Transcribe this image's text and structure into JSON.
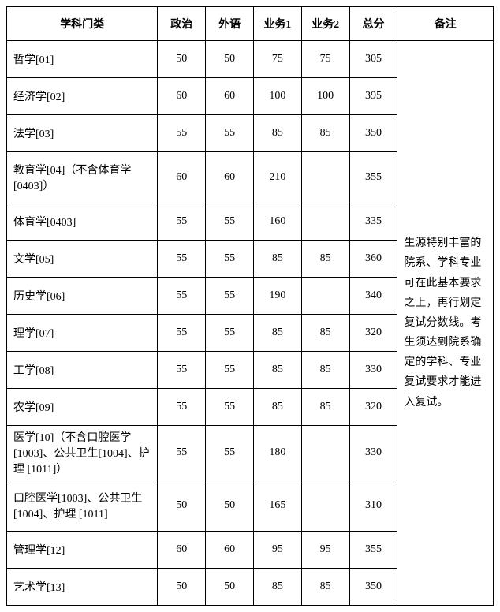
{
  "headers": {
    "subject": "学科门类",
    "politics": "政治",
    "foreign": "外语",
    "course1": "业务1",
    "course2": "业务2",
    "total": "总分",
    "note": "备注"
  },
  "rows": [
    {
      "subject": "哲学[01]",
      "politics": "50",
      "foreign": "50",
      "c1": "75",
      "c2": "75",
      "total": "305",
      "h": "tall1"
    },
    {
      "subject": "经济学[02]",
      "politics": "60",
      "foreign": "60",
      "c1": "100",
      "c2": "100",
      "total": "395",
      "h": "tall1"
    },
    {
      "subject": "法学[03]",
      "politics": "55",
      "foreign": "55",
      "c1": "85",
      "c2": "85",
      "total": "350",
      "h": "tall1"
    },
    {
      "subject": "教育学[04]（不含体育学[0403]）",
      "politics": "60",
      "foreign": "60",
      "c1": "210",
      "c2": "",
      "total": "355",
      "h": "tall2"
    },
    {
      "subject": "体育学[0403]",
      "politics": "55",
      "foreign": "55",
      "c1": "160",
      "c2": "",
      "total": "335",
      "h": "tall1"
    },
    {
      "subject": "文学[05]",
      "politics": "55",
      "foreign": "55",
      "c1": "85",
      "c2": "85",
      "total": "360",
      "h": "tall1"
    },
    {
      "subject": "历史学[06]",
      "politics": "55",
      "foreign": "55",
      "c1": "190",
      "c2": "",
      "total": "340",
      "h": "tall1"
    },
    {
      "subject": "理学[07]",
      "politics": "55",
      "foreign": "55",
      "c1": "85",
      "c2": "85",
      "total": "320",
      "h": "tall1"
    },
    {
      "subject": "工学[08]",
      "politics": "55",
      "foreign": "55",
      "c1": "85",
      "c2": "85",
      "total": "330",
      "h": "tall1"
    },
    {
      "subject": "农学[09]",
      "politics": "55",
      "foreign": "55",
      "c1": "85",
      "c2": "85",
      "total": "320",
      "h": "tall1"
    },
    {
      "subject": "医学[10]（不含口腔医学[1003]、公共卫生[1004]、护理 [1011]）",
      "politics": "55",
      "foreign": "55",
      "c1": "180",
      "c2": "",
      "total": "330",
      "h": "tall3"
    },
    {
      "subject": "口腔医学[1003]、公共卫生 [1004]、护理 [1011]",
      "politics": "50",
      "foreign": "50",
      "c1": "165",
      "c2": "",
      "total": "310",
      "h": "tall2"
    },
    {
      "subject": "管理学[12]",
      "politics": "60",
      "foreign": "60",
      "c1": "95",
      "c2": "95",
      "total": "355",
      "h": "tall1"
    },
    {
      "subject": "艺术学[13]",
      "politics": "50",
      "foreign": "50",
      "c1": "85",
      "c2": "85",
      "total": "350",
      "h": "tall1"
    }
  ],
  "noteText": "生源特别丰富的院系、学科专业可在此基本要求之上，再行划定复试分数线。考生须达到院系确定的学科、专业复试要求才能进入复试。",
  "style": {
    "border_color": "#000000",
    "background_color": "#ffffff",
    "text_color": "#000000",
    "font_family": "SimSun",
    "header_fontsize": 14,
    "cell_fontsize": 14,
    "note_fontsize": 14,
    "col_widths": {
      "subject": 170,
      "score": 54,
      "note": 108
    }
  }
}
